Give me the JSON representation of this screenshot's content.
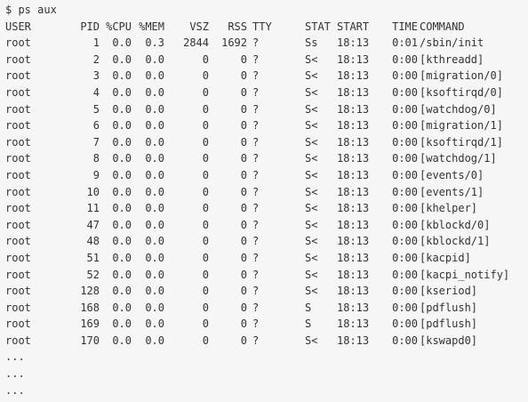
{
  "prompt": "$ ps aux",
  "columns": [
    "USER",
    "PID",
    "%CPU",
    "%MEM",
    "VSZ",
    "RSS",
    "TTY",
    "STAT",
    "START",
    "TIME",
    "COMMAND"
  ],
  "rows": [
    [
      "root",
      "1",
      "0.0",
      "0.3",
      "2844",
      "1692",
      "?",
      "Ss",
      "18:13",
      "0:01",
      "/sbin/init"
    ],
    [
      "root",
      "2",
      "0.0",
      "0.0",
      "0",
      "0",
      "?",
      "S<",
      "18:13",
      "0:00",
      "[kthreadd]"
    ],
    [
      "root",
      "3",
      "0.0",
      "0.0",
      "0",
      "0",
      "?",
      "S<",
      "18:13",
      "0:00",
      "[migration/0]"
    ],
    [
      "root",
      "4",
      "0.0",
      "0.0",
      "0",
      "0",
      "?",
      "S<",
      "18:13",
      "0:00",
      "[ksoftirqd/0]"
    ],
    [
      "root",
      "5",
      "0.0",
      "0.0",
      "0",
      "0",
      "?",
      "S<",
      "18:13",
      "0:00",
      "[watchdog/0]"
    ],
    [
      "root",
      "6",
      "0.0",
      "0.0",
      "0",
      "0",
      "?",
      "S<",
      "18:13",
      "0:00",
      "[migration/1]"
    ],
    [
      "root",
      "7",
      "0.0",
      "0.0",
      "0",
      "0",
      "?",
      "S<",
      "18:13",
      "0:00",
      "[ksoftirqd/1]"
    ],
    [
      "root",
      "8",
      "0.0",
      "0.0",
      "0",
      "0",
      "?",
      "S<",
      "18:13",
      "0:00",
      "[watchdog/1]"
    ],
    [
      "root",
      "9",
      "0.0",
      "0.0",
      "0",
      "0",
      "?",
      "S<",
      "18:13",
      "0:00",
      "[events/0]"
    ],
    [
      "root",
      "10",
      "0.0",
      "0.0",
      "0",
      "0",
      "?",
      "S<",
      "18:13",
      "0:00",
      "[events/1]"
    ],
    [
      "root",
      "11",
      "0.0",
      "0.0",
      "0",
      "0",
      "?",
      "S<",
      "18:13",
      "0:00",
      "[khelper]"
    ],
    [
      "root",
      "47",
      "0.0",
      "0.0",
      "0",
      "0",
      "?",
      "S<",
      "18:13",
      "0:00",
      "[kblockd/0]"
    ],
    [
      "root",
      "48",
      "0.0",
      "0.0",
      "0",
      "0",
      "?",
      "S<",
      "18:13",
      "0:00",
      "[kblockd/1]"
    ],
    [
      "root",
      "51",
      "0.0",
      "0.0",
      "0",
      "0",
      "?",
      "S<",
      "18:13",
      "0:00",
      "[kacpid]"
    ],
    [
      "root",
      "52",
      "0.0",
      "0.0",
      "0",
      "0",
      "?",
      "S<",
      "18:13",
      "0:00",
      "[kacpi_notify]"
    ],
    [
      "root",
      "128",
      "0.0",
      "0.0",
      "0",
      "0",
      "?",
      "S<",
      "18:13",
      "0:00",
      "[kseriod]"
    ],
    [
      "root",
      "168",
      "0.0",
      "0.0",
      "0",
      "0",
      "?",
      "S",
      "18:13",
      "0:00",
      "[pdflush]"
    ],
    [
      "root",
      "169",
      "0.0",
      "0.0",
      "0",
      "0",
      "?",
      "S",
      "18:13",
      "0:00",
      "[pdflush]"
    ],
    [
      "root",
      "170",
      "0.0",
      "0.0",
      "0",
      "0",
      "?",
      "S<",
      "18:13",
      "0:00",
      "[kswapd0]"
    ]
  ],
  "ellipsis": [
    "...",
    "...",
    "..."
  ],
  "colors": {
    "background": "#f6f6f6",
    "text": "#333333"
  }
}
